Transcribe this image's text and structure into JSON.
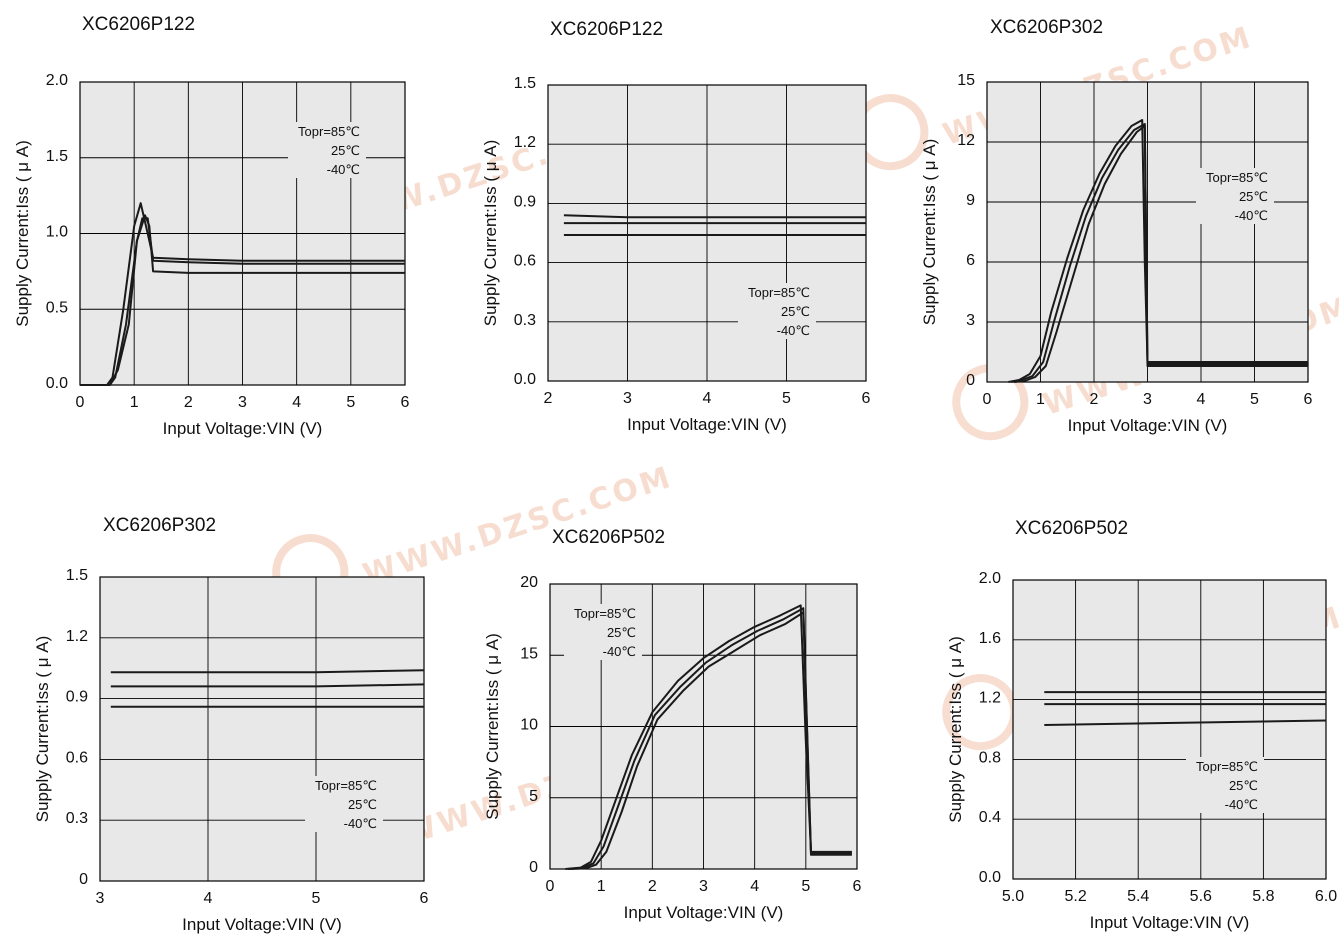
{
  "watermark": {
    "text": "WWW.DZSC.COM",
    "color": "#e9a07c"
  },
  "colors": {
    "plot_bg": "#e8e8e8",
    "grid": "#000000",
    "line": "#1a1a1a",
    "text": "#111111"
  },
  "chart_data": [
    {
      "type": "line",
      "title": "XC6206P122",
      "xlabel": "Input Voltage:VIN (V)",
      "ylabel": "Supply Current:Iss ( μ A)",
      "xlim": [
        0,
        6
      ],
      "ylim": [
        0,
        2.0
      ],
      "xticks": [
        0,
        1,
        2,
        3,
        4,
        5,
        6
      ],
      "xtick_labels": [
        "0",
        "1",
        "2",
        "3",
        "4",
        "5",
        "6"
      ],
      "yticks": [
        0,
        0.5,
        1.0,
        1.5,
        2.0
      ],
      "ytick_labels": [
        "0.0",
        "0.5",
        "1.0",
        "1.5",
        "2.0"
      ],
      "grid": true,
      "legend": [
        "Topr=85℃",
        "25℃",
        "-40℃"
      ],
      "legend_position": "top-right",
      "series": [
        {
          "x": [
            0,
            0.5,
            0.6,
            0.8,
            1.0,
            1.12,
            1.25,
            1.35,
            2,
            3,
            4,
            5,
            6
          ],
          "y": [
            0,
            0,
            0.05,
            0.5,
            1.05,
            1.2,
            1.0,
            0.84,
            0.83,
            0.82,
            0.82,
            0.82,
            0.82
          ]
        },
        {
          "x": [
            0,
            0.55,
            0.65,
            0.85,
            1.05,
            1.15,
            1.25,
            1.35,
            2,
            3,
            4,
            5,
            6
          ],
          "y": [
            0,
            0,
            0.05,
            0.4,
            0.95,
            1.1,
            1.1,
            0.82,
            0.81,
            0.8,
            0.8,
            0.8,
            0.8
          ]
        },
        {
          "x": [
            0,
            0.55,
            0.7,
            0.9,
            1.05,
            1.2,
            1.28,
            1.35,
            2,
            3,
            4,
            5,
            6
          ],
          "y": [
            0,
            0,
            0.1,
            0.4,
            0.95,
            1.12,
            1.05,
            0.75,
            0.74,
            0.74,
            0.74,
            0.74,
            0.74
          ]
        }
      ]
    },
    {
      "type": "line",
      "title": "XC6206P122",
      "xlabel": "Input Voltage:VIN (V)",
      "ylabel": "Supply Current:Iss ( μ A)",
      "xlim": [
        2,
        6
      ],
      "ylim": [
        0,
        1.5
      ],
      "xticks": [
        2,
        3,
        4,
        5,
        6
      ],
      "xtick_labels": [
        "2",
        "3",
        "4",
        "5",
        "6"
      ],
      "yticks": [
        0,
        0.3,
        0.6,
        0.9,
        1.2,
        1.5
      ],
      "ytick_labels": [
        "0.0",
        "0.3",
        "0.6",
        "0.9",
        "1.2",
        "1.5"
      ],
      "grid": true,
      "legend": [
        "Topr=85℃",
        "25℃",
        "-40℃"
      ],
      "legend_position": "bottom-right",
      "series": [
        {
          "x": [
            2.2,
            3,
            6
          ],
          "y": [
            0.84,
            0.83,
            0.83
          ]
        },
        {
          "x": [
            2.2,
            3,
            6
          ],
          "y": [
            0.8,
            0.8,
            0.8
          ]
        },
        {
          "x": [
            2.2,
            6
          ],
          "y": [
            0.74,
            0.74
          ]
        }
      ]
    },
    {
      "type": "line",
      "title": "XC6206P302",
      "xlabel": "Input Voltage:VIN (V)",
      "ylabel": "Supply Current:Iss ( μ A)",
      "xlim": [
        0,
        6
      ],
      "ylim": [
        0,
        15
      ],
      "xticks": [
        0,
        1,
        2,
        3,
        4,
        5,
        6
      ],
      "xtick_labels": [
        "0",
        "1",
        "2",
        "3",
        "4",
        "5",
        "6"
      ],
      "yticks": [
        0,
        3,
        6,
        9,
        12,
        15
      ],
      "ytick_labels": [
        "0",
        "3",
        "6",
        "9",
        "12",
        "15"
      ],
      "grid": true,
      "legend": [
        "Topr=85℃",
        "25℃",
        "-40℃"
      ],
      "legend_position": "right",
      "series": [
        {
          "x": [
            0.4,
            0.6,
            0.8,
            1.0,
            1.2,
            1.5,
            1.8,
            2.1,
            2.4,
            2.7,
            2.9,
            2.95,
            3.0,
            6
          ],
          "y": [
            0,
            0.1,
            0.4,
            1.3,
            3.5,
            6.2,
            8.6,
            10.4,
            11.8,
            12.8,
            13.1,
            6,
            1.0,
            1.0
          ]
        },
        {
          "x": [
            0.45,
            0.65,
            0.85,
            1.05,
            1.25,
            1.55,
            1.85,
            2.15,
            2.45,
            2.75,
            2.95,
            3.0,
            6
          ],
          "y": [
            0,
            0.1,
            0.3,
            1.0,
            3.0,
            5.8,
            8.3,
            10.2,
            11.6,
            12.6,
            12.9,
            0.9,
            0.9
          ]
        },
        {
          "x": [
            0.5,
            0.7,
            0.9,
            1.1,
            1.3,
            1.6,
            1.9,
            2.2,
            2.5,
            2.8,
            2.95,
            3.0,
            6
          ],
          "y": [
            0,
            0.05,
            0.25,
            0.8,
            2.5,
            5.2,
            7.9,
            9.9,
            11.4,
            12.5,
            12.8,
            0.8,
            0.8
          ]
        }
      ]
    },
    {
      "type": "line",
      "title": "XC6206P302",
      "xlabel": "Input Voltage:VIN (V)",
      "ylabel": "Supply Current:Iss ( μ A)",
      "xlim": [
        3,
        6
      ],
      "ylim": [
        0,
        1.5
      ],
      "xticks": [
        3,
        4,
        5,
        6
      ],
      "xtick_labels": [
        "3",
        "4",
        "5",
        "6"
      ],
      "yticks": [
        0,
        0.3,
        0.6,
        0.9,
        1.2,
        1.5
      ],
      "ytick_labels": [
        "0",
        "0.3",
        "0.6",
        "0.9",
        "1.2",
        "1.5"
      ],
      "grid": true,
      "legend": [
        "Topr=85℃",
        "25℃",
        "-40℃"
      ],
      "legend_position": "bottom-right",
      "series": [
        {
          "x": [
            3.1,
            5,
            6
          ],
          "y": [
            1.03,
            1.03,
            1.04
          ]
        },
        {
          "x": [
            3.1,
            5,
            6
          ],
          "y": [
            0.96,
            0.96,
            0.97
          ]
        },
        {
          "x": [
            3.1,
            6
          ],
          "y": [
            0.86,
            0.86
          ]
        }
      ]
    },
    {
      "type": "line",
      "title": "XC6206P502",
      "xlabel": "Input Voltage:VIN (V)",
      "ylabel": "Supply Current:Iss ( μ A)",
      "xlim": [
        0,
        6
      ],
      "ylim": [
        0,
        20
      ],
      "xticks": [
        0,
        1,
        2,
        3,
        4,
        5,
        6
      ],
      "xtick_labels": [
        "0",
        "1",
        "2",
        "3",
        "4",
        "5",
        "6"
      ],
      "yticks": [
        0,
        5,
        10,
        15,
        20
      ],
      "ytick_labels": [
        "0",
        "5",
        "10",
        "15",
        "20"
      ],
      "grid": true,
      "legend": [
        "Topr=85℃",
        "25℃",
        "-40℃"
      ],
      "legend_position": "top-left",
      "series": [
        {
          "x": [
            0.3,
            0.6,
            0.8,
            1.0,
            1.3,
            1.6,
            2.0,
            2.5,
            3.0,
            3.5,
            4.0,
            4.5,
            4.9,
            5.0,
            5.1,
            5.9
          ],
          "y": [
            0,
            0.1,
            0.5,
            2.0,
            5.0,
            8.0,
            11.0,
            13.2,
            14.8,
            16.0,
            17.0,
            17.8,
            18.5,
            9,
            1.2,
            1.2
          ]
        },
        {
          "x": [
            0.35,
            0.65,
            0.85,
            1.05,
            1.35,
            1.65,
            2.05,
            2.55,
            3.05,
            3.55,
            4.05,
            4.55,
            4.95,
            5.1,
            5.9
          ],
          "y": [
            0,
            0.1,
            0.4,
            1.6,
            4.6,
            7.6,
            10.8,
            12.8,
            14.5,
            15.7,
            16.7,
            17.5,
            18.3,
            1.1,
            1.1
          ]
        },
        {
          "x": [
            0.4,
            0.7,
            0.9,
            1.1,
            1.4,
            1.7,
            2.1,
            2.6,
            3.1,
            3.6,
            4.1,
            4.6,
            4.95,
            5.1,
            5.9
          ],
          "y": [
            0,
            0.05,
            0.3,
            1.2,
            4.0,
            7.2,
            10.5,
            12.5,
            14.2,
            15.3,
            16.4,
            17.2,
            18.0,
            1.0,
            1.0
          ]
        }
      ]
    },
    {
      "type": "line",
      "title": "XC6206P502",
      "xlabel": "Input Voltage:VIN (V)",
      "ylabel": "Supply Current:Iss ( μ A)",
      "xlim": [
        5.0,
        6.0
      ],
      "ylim": [
        0,
        2.0
      ],
      "xticks": [
        5.0,
        5.2,
        5.4,
        5.6,
        5.8,
        6.0
      ],
      "xtick_labels": [
        "5.0",
        "5.2",
        "5.4",
        "5.6",
        "5.8",
        "6.0"
      ],
      "yticks": [
        0,
        0.4,
        0.8,
        1.2,
        1.6,
        2.0
      ],
      "ytick_labels": [
        "0.0",
        "0.4",
        "0.8",
        "1.2",
        "1.6",
        "2.0"
      ],
      "grid": true,
      "legend": [
        "Topr=85℃",
        "25℃",
        "-40℃"
      ],
      "legend_position": "bottom-right",
      "series": [
        {
          "x": [
            5.1,
            6.0
          ],
          "y": [
            1.25,
            1.25
          ]
        },
        {
          "x": [
            5.1,
            6.0
          ],
          "y": [
            1.17,
            1.17
          ]
        },
        {
          "x": [
            5.1,
            6.0
          ],
          "y": [
            1.03,
            1.06
          ]
        }
      ]
    }
  ]
}
